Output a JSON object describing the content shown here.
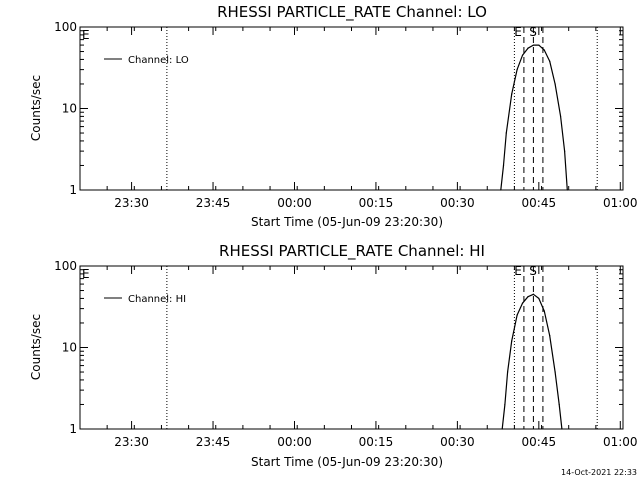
{
  "start_time_iso": "2009-06-05T23:20:30",
  "footer": {
    "timestamp": "14-Oct-2021 22:33"
  },
  "event_markers": [
    "E",
    "S"
  ],
  "colors": {
    "background": "#ffffff",
    "foreground": "#000000"
  },
  "chart_data": [
    {
      "type": "line",
      "title": "RHESSI PARTICLE_RATE Channel: LO",
      "xlabel": "Start Time (05-Jun-09 23:20:30)",
      "ylabel": "Counts/sec",
      "y_scale": "log",
      "ylim": [
        1,
        100
      ],
      "y_ticks": [
        {
          "value": 1,
          "label": "1"
        },
        {
          "value": 10,
          "label": "10"
        },
        {
          "value": 100,
          "label": "100"
        }
      ],
      "xlim": [
        "23:20:30",
        "01:00:30"
      ],
      "x_ticks": [
        {
          "time": "23:30",
          "label": "23:30"
        },
        {
          "time": "23:45",
          "label": "23:45"
        },
        {
          "time": "00:00",
          "label": "00:00"
        },
        {
          "time": "00:15",
          "label": "00:15"
        },
        {
          "time": "00:30",
          "label": "00:30"
        },
        {
          "time": "00:45",
          "label": "00:45"
        },
        {
          "time": "01:00",
          "label": "01:00"
        }
      ],
      "grid": false,
      "legend_position": "top-left",
      "series": [
        {
          "name": "Channel: LO",
          "points": [
            {
              "time": "00:38:00",
              "value": 1
            },
            {
              "time": "00:38:30",
              "value": 2
            },
            {
              "time": "00:39:00",
              "value": 5
            },
            {
              "time": "00:40:00",
              "value": 15
            },
            {
              "time": "00:41:00",
              "value": 30
            },
            {
              "time": "00:42:00",
              "value": 45
            },
            {
              "time": "00:43:00",
              "value": 55
            },
            {
              "time": "00:44:00",
              "value": 60
            },
            {
              "time": "00:45:00",
              "value": 60
            },
            {
              "time": "00:46:00",
              "value": 52
            },
            {
              "time": "00:47:00",
              "value": 38
            },
            {
              "time": "00:48:00",
              "value": 20
            },
            {
              "time": "00:49:00",
              "value": 8
            },
            {
              "time": "00:49:45",
              "value": 3
            },
            {
              "time": "00:50:15",
              "value": 1
            }
          ]
        }
      ],
      "dotted_lines": [
        "23:36:30",
        "00:40:30",
        "00:55:45"
      ],
      "dashed_lines": [
        "00:42:15",
        "00:44:00",
        "00:45:45"
      ],
      "event_labels": [
        {
          "label": "E",
          "time": "00:41:30"
        },
        {
          "label": "S",
          "time": "00:43:00"
        }
      ],
      "corner_label": "E"
    },
    {
      "type": "line",
      "title": "RHESSI PARTICLE_RATE Channel: HI",
      "xlabel": "Start Time (05-Jun-09 23:20:30)",
      "ylabel": "Counts/sec",
      "y_scale": "log",
      "ylim": [
        1,
        100
      ],
      "y_ticks": [
        {
          "value": 1,
          "label": "1"
        },
        {
          "value": 10,
          "label": "10"
        },
        {
          "value": 100,
          "label": "100"
        }
      ],
      "xlim": [
        "23:20:30",
        "01:00:30"
      ],
      "x_ticks": [
        {
          "time": "23:30",
          "label": "23:30"
        },
        {
          "time": "23:45",
          "label": "23:45"
        },
        {
          "time": "00:00",
          "label": "00:00"
        },
        {
          "time": "00:15",
          "label": "00:15"
        },
        {
          "time": "00:30",
          "label": "00:30"
        },
        {
          "time": "00:45",
          "label": "00:45"
        },
        {
          "time": "01:00",
          "label": "01:00"
        }
      ],
      "grid": false,
      "legend_position": "top-left",
      "series": [
        {
          "name": "Channel: HI",
          "points": [
            {
              "time": "00:38:15",
              "value": 1
            },
            {
              "time": "00:38:45",
              "value": 2
            },
            {
              "time": "00:39:15",
              "value": 5
            },
            {
              "time": "00:40:00",
              "value": 12
            },
            {
              "time": "00:41:00",
              "value": 25
            },
            {
              "time": "00:42:00",
              "value": 35
            },
            {
              "time": "00:43:00",
              "value": 42
            },
            {
              "time": "00:44:00",
              "value": 45
            },
            {
              "time": "00:45:00",
              "value": 40
            },
            {
              "time": "00:46:00",
              "value": 28
            },
            {
              "time": "00:47:00",
              "value": 14
            },
            {
              "time": "00:48:00",
              "value": 5
            },
            {
              "time": "00:48:45",
              "value": 2
            },
            {
              "time": "00:49:15",
              "value": 1
            }
          ]
        }
      ],
      "dotted_lines": [
        "23:36:30",
        "00:40:30",
        "00:55:45"
      ],
      "dashed_lines": [
        "00:42:15",
        "00:44:00",
        "00:45:45"
      ],
      "event_labels": [
        {
          "label": "E",
          "time": "00:41:30"
        },
        {
          "label": "S",
          "time": "00:43:00"
        }
      ],
      "corner_label": "E"
    }
  ]
}
